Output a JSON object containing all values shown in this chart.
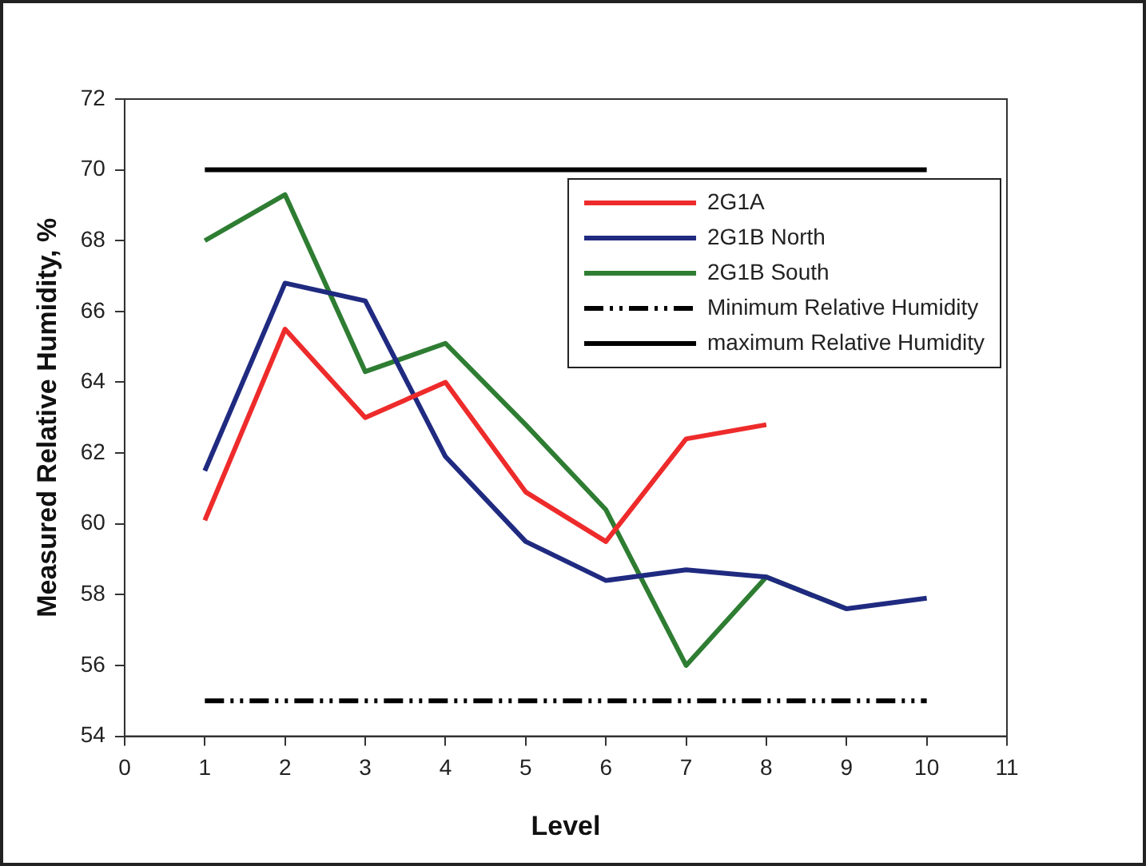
{
  "chart_data": {
    "type": "line",
    "xlabel": "Level",
    "ylabel": "Measured Relative Humidity, %",
    "x": [
      1,
      2,
      3,
      4,
      5,
      6,
      7,
      8,
      9,
      10
    ],
    "xlim": [
      0,
      11
    ],
    "xticks": [
      0,
      1,
      2,
      3,
      4,
      5,
      6,
      7,
      8,
      9,
      10,
      11
    ],
    "ylim": [
      54,
      72
    ],
    "yticks": [
      54,
      56,
      58,
      60,
      62,
      64,
      66,
      68,
      70,
      72
    ],
    "grid": false,
    "legend": "top right",
    "marker": "none",
    "series": [
      {
        "name": "2G1A",
        "color": "#ee2b2b",
        "values": [
          60.1,
          65.5,
          63.0,
          64.0,
          60.9,
          59.5,
          62.4,
          62.8,
          null,
          null
        ]
      },
      {
        "name": "2G1B North",
        "color": "#1f2a80",
        "values": [
          61.5,
          66.8,
          66.3,
          61.9,
          59.5,
          58.4,
          58.7,
          58.5,
          57.6,
          57.9
        ]
      },
      {
        "name": "2G1B South",
        "color": "#2e7d32",
        "values": [
          68.0,
          69.3,
          64.3,
          65.1,
          62.8,
          60.4,
          56.0,
          58.5,
          57.6,
          null
        ]
      },
      {
        "name": "Minimum Relative Humidity",
        "color": "#000000",
        "line_style": "dashed",
        "values": [
          55,
          55,
          55,
          55,
          55,
          55,
          55,
          55,
          55,
          55
        ]
      },
      {
        "name": "maximum Relative Humidity",
        "color": "#000000",
        "line_style": "solid",
        "values": [
          70,
          70,
          70,
          70,
          70,
          70,
          70,
          70,
          70,
          70
        ]
      }
    ]
  }
}
